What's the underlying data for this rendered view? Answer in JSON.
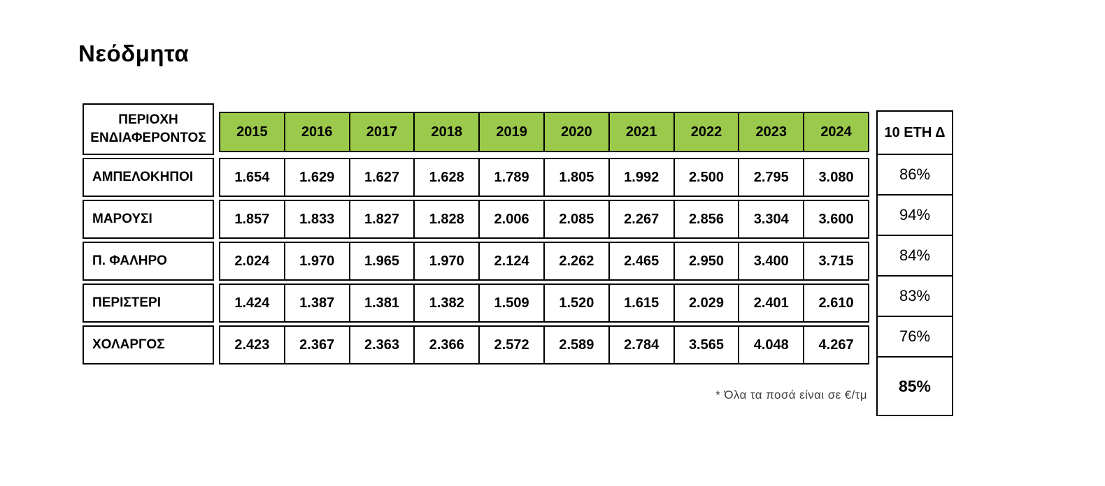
{
  "title": "Νεόδμητα",
  "table": {
    "area_header": "ΠΕΡΙΟΧΗ ΕΝΔΙΑΦΕΡΟΝΤΟΣ",
    "delta_header": "10 ΕΤΗ Δ",
    "years": [
      "2015",
      "2016",
      "2017",
      "2018",
      "2019",
      "2020",
      "2021",
      "2022",
      "2023",
      "2024"
    ],
    "rows": [
      {
        "area": "ΑΜΠΕΛΟΚΗΠΟΙ",
        "values": [
          "1.654",
          "1.629",
          "1.627",
          "1.628",
          "1.789",
          "1.805",
          "1.992",
          "2.500",
          "2.795",
          "3.080"
        ],
        "delta": "86%"
      },
      {
        "area": "ΜΑΡΟΥΣΙ",
        "values": [
          "1.857",
          "1.833",
          "1.827",
          "1.828",
          "2.006",
          "2.085",
          "2.267",
          "2.856",
          "3.304",
          "3.600"
        ],
        "delta": "94%"
      },
      {
        "area": "Π. ΦΑΛΗΡΟ",
        "values": [
          "2.024",
          "1.970",
          "1.965",
          "1.970",
          "2.124",
          "2.262",
          "2.465",
          "2.950",
          "3.400",
          "3.715"
        ],
        "delta": "84%"
      },
      {
        "area": "ΠΕΡΙΣΤΕΡΙ",
        "values": [
          "1.424",
          "1.387",
          "1.381",
          "1.382",
          "1.509",
          "1.520",
          "1.615",
          "2.029",
          "2.401",
          "2.610"
        ],
        "delta": "83%"
      },
      {
        "area": "ΧΟΛΑΡΓΟΣ",
        "values": [
          "2.423",
          "2.367",
          "2.363",
          "2.366",
          "2.572",
          "2.589",
          "2.784",
          "3.565",
          "4.048",
          "4.267"
        ],
        "delta": "76%"
      }
    ],
    "average_delta": "85%"
  },
  "footnote": "* Όλα τα ποσά είναι σε €/τμ",
  "colors": {
    "year_header_bg": "#9AC94B",
    "border": "#000000",
    "text": "#000000",
    "footnote_text": "#3f3f3f"
  },
  "chart_data": {
    "type": "table",
    "title": "Νεόδμητα",
    "units": "€/τμ",
    "columns": [
      "ΠΕΡΙΟΧΗ ΕΝΔΙΑΦΕΡΟΝΤΟΣ",
      "2015",
      "2016",
      "2017",
      "2018",
      "2019",
      "2020",
      "2021",
      "2022",
      "2023",
      "2024",
      "10 ΕΤΗ Δ"
    ],
    "x": [
      2015,
      2016,
      2017,
      2018,
      2019,
      2020,
      2021,
      2022,
      2023,
      2024
    ],
    "series": [
      {
        "name": "ΑΜΠΕΛΟΚΗΠΟΙ",
        "values": [
          1654,
          1629,
          1627,
          1628,
          1789,
          1805,
          1992,
          2500,
          2795,
          3080
        ],
        "delta_10y_pct": 86
      },
      {
        "name": "ΜΑΡΟΥΣΙ",
        "values": [
          1857,
          1833,
          1827,
          1828,
          2006,
          2085,
          2267,
          2856,
          3304,
          3600
        ],
        "delta_10y_pct": 94
      },
      {
        "name": "Π. ΦΑΛΗΡΟ",
        "values": [
          2024,
          1970,
          1965,
          1970,
          2124,
          2262,
          2465,
          2950,
          3400,
          3715
        ],
        "delta_10y_pct": 84
      },
      {
        "name": "ΠΕΡΙΣΤΕΡΙ",
        "values": [
          1424,
          1387,
          1381,
          1382,
          1509,
          1520,
          1615,
          2029,
          2401,
          2610
        ],
        "delta_10y_pct": 83
      },
      {
        "name": "ΧΟΛΑΡΓΟΣ",
        "values": [
          2423,
          2367,
          2363,
          2366,
          2572,
          2589,
          2784,
          3565,
          4048,
          4267
        ],
        "delta_10y_pct": 76
      }
    ],
    "average_delta_10y_pct": 85,
    "footnote": "* Όλα τα ποσά είναι σε €/τμ"
  }
}
